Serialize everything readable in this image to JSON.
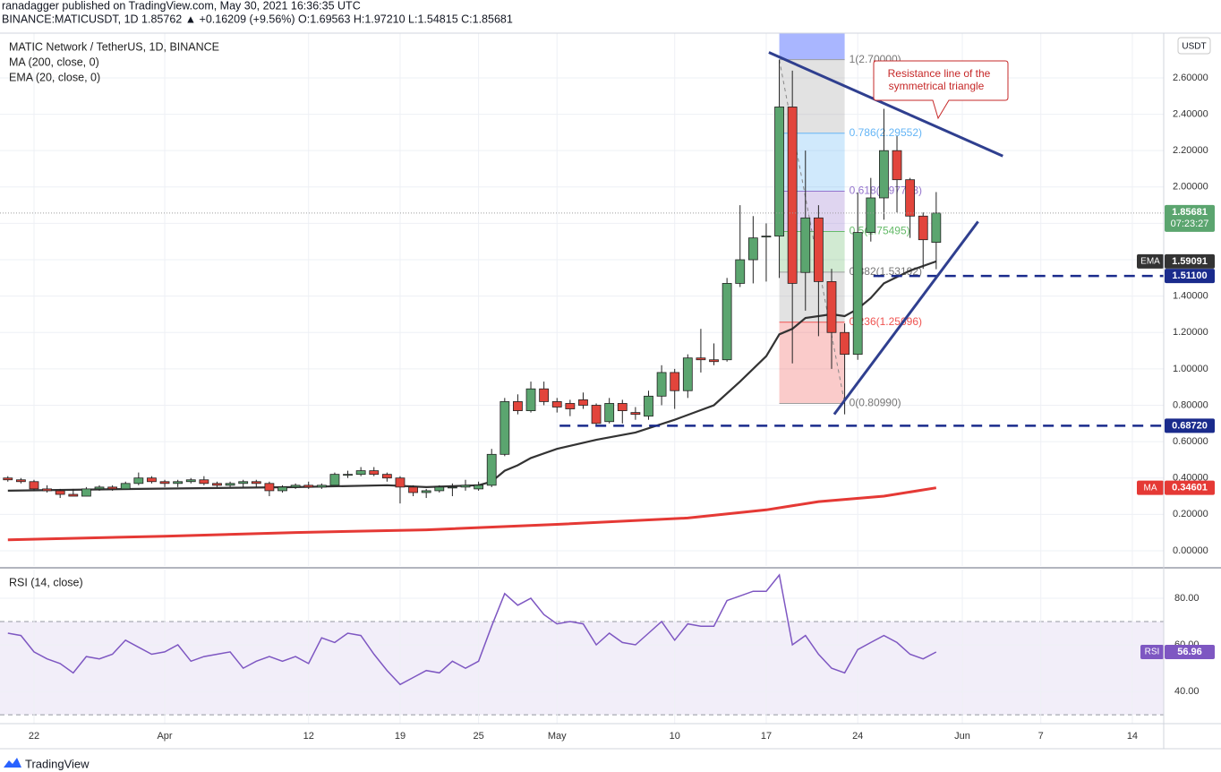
{
  "header": {
    "author_line": "ranadagger published on TradingView.com, May 30, 2021 16:36:35 UTC",
    "symbol_line": "BINANCE:MATICUSDT, 1D  1.85762 ▲ +0.16209 (+9.56%) O:1.69563 H:1.97210 L:1.54815 C:1.85681"
  },
  "chart_data": [
    {
      "type": "candlestick",
      "title": "MATIC Network / TetherUS, 1D, BINANCE",
      "currency": "USDT",
      "x": [
        -2,
        -1,
        0,
        1,
        2,
        3,
        4,
        5,
        6,
        7,
        8,
        9,
        10,
        11,
        12,
        13,
        14,
        15,
        16,
        17,
        18,
        19,
        20,
        21,
        22,
        23,
        24,
        25,
        26,
        27,
        28,
        29,
        30,
        31,
        32,
        33,
        34,
        35,
        36,
        37,
        38,
        39,
        40,
        41,
        42,
        43,
        44,
        45,
        46,
        47,
        48,
        49,
        50,
        51,
        52,
        53,
        54,
        55,
        56,
        57,
        58,
        59,
        60,
        61,
        62,
        63,
        64,
        65,
        66,
        67,
        68,
        69
      ],
      "open": [
        0.4,
        0.39,
        0.38,
        0.34,
        0.33,
        0.31,
        0.3,
        0.34,
        0.35,
        0.34,
        0.37,
        0.4,
        0.38,
        0.37,
        0.38,
        0.39,
        0.37,
        0.36,
        0.37,
        0.38,
        0.37,
        0.33,
        0.35,
        0.36,
        0.35,
        0.36,
        0.42,
        0.42,
        0.44,
        0.42,
        0.4,
        0.35,
        0.32,
        0.33,
        0.35,
        0.35,
        0.34,
        0.36,
        0.53,
        0.82,
        0.77,
        0.89,
        0.82,
        0.81,
        0.83,
        0.8,
        0.71,
        0.81,
        0.76,
        0.74,
        0.85,
        0.98,
        0.88,
        1.06,
        1.05,
        1.05,
        1.47,
        1.6,
        1.73,
        1.73,
        2.44,
        1.53,
        1.83,
        1.48,
        1.2,
        1.08,
        1.75,
        1.94,
        2.2,
        2.04,
        1.84,
        1.69563
      ],
      "high": [
        0.41,
        0.4,
        0.39,
        0.36,
        0.34,
        0.34,
        0.35,
        0.36,
        0.36,
        0.38,
        0.43,
        0.41,
        0.39,
        0.39,
        0.4,
        0.41,
        0.38,
        0.38,
        0.39,
        0.39,
        0.38,
        0.36,
        0.37,
        0.38,
        0.37,
        0.43,
        0.44,
        0.46,
        0.46,
        0.43,
        0.41,
        0.36,
        0.34,
        0.36,
        0.37,
        0.39,
        0.38,
        0.56,
        0.84,
        0.86,
        0.93,
        0.93,
        0.84,
        0.83,
        0.87,
        0.81,
        0.84,
        0.83,
        0.79,
        0.88,
        1.02,
        1.0,
        1.08,
        1.22,
        1.14,
        1.5,
        1.9,
        1.84,
        1.8,
        2.7,
        2.64,
        2.2,
        1.9,
        1.55,
        1.25,
        1.97,
        2.05,
        2.43,
        2.28,
        2.05,
        1.86,
        1.9721
      ],
      "low": [
        0.38,
        0.37,
        0.33,
        0.32,
        0.29,
        0.3,
        0.3,
        0.33,
        0.33,
        0.34,
        0.36,
        0.37,
        0.35,
        0.35,
        0.37,
        0.36,
        0.35,
        0.35,
        0.35,
        0.35,
        0.3,
        0.32,
        0.34,
        0.34,
        0.34,
        0.36,
        0.4,
        0.41,
        0.41,
        0.38,
        0.26,
        0.3,
        0.29,
        0.32,
        0.3,
        0.33,
        0.33,
        0.35,
        0.52,
        0.75,
        0.76,
        0.8,
        0.76,
        0.74,
        0.78,
        0.69,
        0.7,
        0.7,
        0.72,
        0.72,
        0.8,
        0.78,
        0.84,
        0.98,
        1.02,
        1.04,
        1.45,
        1.47,
        1.48,
        1.5,
        1.03,
        1.32,
        1.18,
        1.0,
        0.75,
        1.05,
        1.7,
        1.82,
        1.86,
        1.72,
        1.55,
        1.54815
      ],
      "close": [
        0.39,
        0.38,
        0.34,
        0.33,
        0.31,
        0.3,
        0.34,
        0.35,
        0.34,
        0.37,
        0.4,
        0.38,
        0.37,
        0.38,
        0.39,
        0.37,
        0.36,
        0.37,
        0.38,
        0.37,
        0.33,
        0.35,
        0.36,
        0.35,
        0.36,
        0.42,
        0.42,
        0.44,
        0.42,
        0.4,
        0.35,
        0.32,
        0.33,
        0.35,
        0.35,
        0.36,
        0.36,
        0.53,
        0.82,
        0.77,
        0.89,
        0.82,
        0.79,
        0.78,
        0.8,
        0.7,
        0.81,
        0.77,
        0.75,
        0.85,
        0.98,
        0.88,
        1.06,
        1.05,
        1.04,
        1.47,
        1.6,
        1.72,
        1.73,
        2.44,
        1.47,
        1.83,
        1.48,
        1.2,
        1.08,
        1.75,
        1.94,
        2.2,
        2.04,
        1.84,
        1.71,
        1.85681
      ],
      "up_color": "#5ba56f",
      "down_color": "#e2453c",
      "last_price_countdown": "07:23:27",
      "series": [
        {
          "name": "MA (200, close, 0)",
          "tag": "MA",
          "color": "#e53935",
          "x": [
            -2,
            10,
            20,
            30,
            40,
            50,
            56,
            60,
            65,
            69
          ],
          "values": [
            0.06,
            0.08,
            0.1,
            0.115,
            0.145,
            0.18,
            0.225,
            0.27,
            0.3,
            0.34601
          ]
        },
        {
          "name": "EMA (20, close, 0)",
          "tag": "EMA",
          "color": "#333333",
          "x": [
            -2,
            8,
            20,
            27,
            30,
            34,
            35,
            36,
            37,
            38,
            40,
            43,
            46,
            49,
            52,
            54,
            56,
            57,
            58,
            59,
            61,
            62,
            63,
            64,
            65,
            67,
            69
          ],
          "values": [
            0.33,
            0.34,
            0.35,
            0.36,
            0.35,
            0.36,
            0.38,
            0.44,
            0.47,
            0.51,
            0.56,
            0.61,
            0.65,
            0.72,
            0.8,
            0.93,
            1.07,
            1.19,
            1.22,
            1.28,
            1.3,
            1.29,
            1.33,
            1.39,
            1.47,
            1.54,
            1.59091
          ]
        }
      ],
      "fibonacci": {
        "x": [
          57,
          62
        ],
        "prices": [
          2.7,
          2.29552,
          1.97713,
          1.75495,
          1.53192,
          1.25696,
          0.8099
        ],
        "labels": [
          "1(2.70000)",
          "0.786(2.29552)",
          "0.618(1.97713)",
          "0.5(1.75495)",
          "0.382(1.53192)",
          "0.236(1.25696)",
          "0(0.80990)"
        ],
        "colors": [
          "#9e9e9e",
          "#64b5f6",
          "#9575cd",
          "#66bb6a",
          "#9e9e9e",
          "#ef5350",
          "#9e9e9e"
        ]
      },
      "hlines": [
        {
          "value": 1.511,
          "label": "1.51100",
          "x": 64.2
        },
        {
          "value": 0.6872,
          "label": "0.68720",
          "x": 40.2
        }
      ],
      "trendlines": [
        {
          "x": [
            56.2,
            74.1
          ],
          "y": [
            2.74,
            2.17
          ]
        },
        {
          "x": [
            61.2,
            72.2
          ],
          "y": [
            0.75,
            1.81
          ]
        }
      ],
      "annotation": {
        "lines": [
          "Resistance line of the",
          "symmetrical triangle"
        ]
      },
      "xlim": [
        -2.6,
        86.4
      ],
      "xticks": [
        {
          "value": 0,
          "label": "22"
        },
        {
          "value": 10,
          "label": "Apr"
        },
        {
          "value": 21,
          "label": "12"
        },
        {
          "value": 28,
          "label": "19"
        },
        {
          "value": 34,
          "label": "25"
        },
        {
          "value": 40,
          "label": "May"
        },
        {
          "value": 49,
          "label": "10"
        },
        {
          "value": 56,
          "label": "17"
        },
        {
          "value": 63,
          "label": "24"
        },
        {
          "value": 71,
          "label": "Jun"
        },
        {
          "value": 77,
          "label": "7"
        },
        {
          "value": 84,
          "label": "14"
        }
      ],
      "ylim": [
        -0.084,
        2.846
      ],
      "yticks": [
        {
          "value": 0,
          "label": "0.00000"
        },
        {
          "value": 0.2,
          "label": "0.20000"
        },
        {
          "value": 0.4,
          "label": "0.40000"
        },
        {
          "value": 0.6,
          "label": "0.60000"
        },
        {
          "value": 0.8,
          "label": "0.80000"
        },
        {
          "value": 1,
          "label": "1.00000"
        },
        {
          "value": 1.2,
          "label": "1.20000"
        },
        {
          "value": 1.4,
          "label": "1.40000"
        },
        {
          "value": 1.6,
          "label": "1.60000"
        },
        {
          "value": 1.8,
          "label": "1.80000"
        },
        {
          "value": 2,
          "label": "2.00000"
        },
        {
          "value": 2.2,
          "label": "2.20000"
        },
        {
          "value": 2.4,
          "label": "2.40000"
        },
        {
          "value": 2.6,
          "label": "2.60000"
        }
      ],
      "grid": true
    },
    {
      "type": "line",
      "title": "RSI (14, close)",
      "tag": "RSI",
      "color": "#7e57c2",
      "x": [
        -2,
        -1,
        0,
        1,
        2,
        3,
        4,
        5,
        6,
        7,
        8,
        9,
        10,
        11,
        12,
        13,
        14,
        15,
        16,
        17,
        18,
        19,
        20,
        21,
        22,
        23,
        24,
        25,
        26,
        27,
        28,
        29,
        30,
        31,
        32,
        33,
        34,
        35,
        36,
        37,
        38,
        39,
        40,
        41,
        42,
        43,
        44,
        45,
        46,
        47,
        48,
        49,
        50,
        51,
        52,
        53,
        54,
        55,
        56,
        57,
        58,
        59,
        60,
        61,
        62,
        63,
        64,
        65,
        66,
        67,
        68,
        69
      ],
      "values": [
        65,
        64,
        57,
        54,
        52,
        48,
        55,
        54,
        56,
        62,
        59,
        56,
        57,
        60,
        53,
        55,
        56,
        57,
        50,
        53,
        55,
        53,
        55,
        52,
        63,
        61,
        65,
        64,
        56,
        49,
        43,
        46,
        49,
        48,
        53,
        50,
        53,
        68,
        82,
        77,
        80,
        73,
        69,
        70,
        69,
        60,
        65,
        61,
        60,
        65,
        70,
        62,
        69,
        68,
        68,
        79,
        81,
        83,
        83,
        90,
        60,
        64,
        56,
        50,
        48,
        58,
        61,
        64,
        61,
        56,
        54,
        56.96
      ],
      "band": [
        30,
        70
      ],
      "xlim": [
        -2.6,
        86.4
      ],
      "ylim": [
        26.2,
        92.3
      ],
      "yticks": [
        {
          "value": 40,
          "label": "40.00"
        },
        {
          "value": 60,
          "label": "60.00"
        },
        {
          "value": 80,
          "label": "80.00"
        }
      ],
      "grid": true
    }
  ],
  "footer": {
    "brand": "TradingView"
  }
}
